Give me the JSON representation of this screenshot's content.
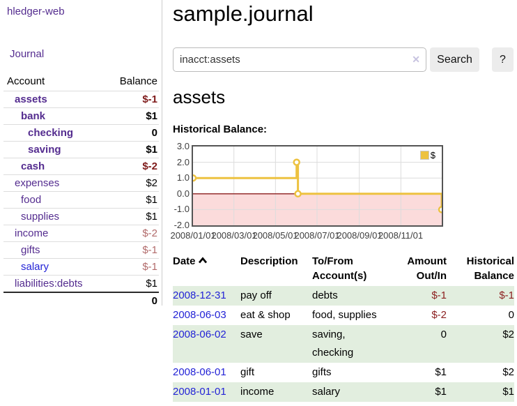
{
  "app": {
    "title": "hledger-web"
  },
  "sidebar": {
    "nav_journal": "Journal",
    "accounts": {
      "header_account": "Account",
      "header_balance": "Balance",
      "rows": [
        {
          "account": "assets",
          "indent": 1,
          "bold": true,
          "balance": "$-1",
          "negative": true
        },
        {
          "account": "bank",
          "indent": 2,
          "bold": true,
          "balance": "$1",
          "negative": false
        },
        {
          "account": "checking",
          "indent": 3,
          "bold": true,
          "balance": "0",
          "negative": false
        },
        {
          "account": "saving",
          "indent": 3,
          "bold": true,
          "balance": "$1",
          "negative": false
        },
        {
          "account": "cash",
          "indent": 2,
          "bold": true,
          "balance": "$-2",
          "negative": true
        },
        {
          "account": "expenses",
          "indent": 1,
          "bold": false,
          "balance": "$2",
          "negative": false
        },
        {
          "account": "food",
          "indent": 2,
          "bold": false,
          "balance": "$1",
          "negative": false
        },
        {
          "account": "supplies",
          "indent": 2,
          "bold": false,
          "balance": "$1",
          "negative": false
        },
        {
          "account": "income",
          "indent": 1,
          "bold": false,
          "balance": "$-2",
          "negative": true
        },
        {
          "account": "gifts",
          "indent": 2,
          "bold": false,
          "balance": "$-1",
          "negative": true
        },
        {
          "account": "salary",
          "indent": 2,
          "bold": false,
          "balance": "$-1",
          "negative": true,
          "unvisited": true
        },
        {
          "account": "liabilities:debts",
          "indent": 1,
          "bold": false,
          "balance": "$1",
          "negative": false
        }
      ],
      "total": "0"
    }
  },
  "main": {
    "title": "sample.journal",
    "search": {
      "value": "inacct:assets",
      "clear_icon": "✕",
      "button_label": "Search",
      "help_label": "?"
    },
    "account_heading": "assets",
    "chart_title": "Historical Balance:"
  },
  "chart_data": {
    "type": "line",
    "style": "step-after",
    "title": "Historical Balance",
    "xlabel": "",
    "ylabel": "",
    "ylim": [
      -2,
      3
    ],
    "x_range": [
      "2008-01-01",
      "2008-12-31"
    ],
    "y_ticks": [
      "3.0",
      "2.0",
      "1.0",
      "0.0",
      "-1.0",
      "-2.0"
    ],
    "x_ticks": [
      "2008/01/01",
      "2008/03/01",
      "2008/05/01",
      "2008/07/01",
      "2008/09/01",
      "2008/11/01"
    ],
    "grid": true,
    "legend_position": "top-right",
    "series": [
      {
        "name": "$",
        "color": "#edc240",
        "points": [
          {
            "date": "2008-01-01",
            "value": 1
          },
          {
            "date": "2008-06-01",
            "value": 2
          },
          {
            "date": "2008-06-03",
            "value": 0
          },
          {
            "date": "2008-12-31",
            "value": -1
          }
        ]
      }
    ],
    "colors": {
      "series": "#edc240",
      "marker_fill": "#ffffff",
      "negative_region": "#fbdbdb",
      "zero_line": "#8b1d1d",
      "gridline": "#dcdcdc",
      "border": "#545454"
    }
  },
  "register": {
    "headers": [
      "Date",
      "Description",
      "To/From Account(s)",
      "Amount Out/In",
      "Historical Balance"
    ],
    "sort_icon": "chevron-up",
    "rows": [
      {
        "date": "2008-12-31",
        "description": "pay off",
        "accounts": "debts",
        "amount": "$-1",
        "amount_negative": true,
        "balance": "$-1",
        "balance_negative": true
      },
      {
        "date": "2008-06-03",
        "description": "eat & shop",
        "accounts": "food, supplies",
        "amount": "$-2",
        "amount_negative": true,
        "balance": "0",
        "balance_negative": false
      },
      {
        "date": "2008-06-02",
        "description": "save",
        "accounts": "saving, checking",
        "amount": "0",
        "amount_negative": false,
        "balance": "$2",
        "balance_negative": false
      },
      {
        "date": "2008-06-01",
        "description": "gift",
        "accounts": "gifts",
        "amount": "$1",
        "amount_negative": false,
        "balance": "$2",
        "balance_negative": false
      },
      {
        "date": "2008-01-01",
        "description": "income",
        "accounts": "salary",
        "amount": "$1",
        "amount_negative": false,
        "balance": "$1",
        "balance_negative": false
      }
    ],
    "colors": {
      "date_link": "#2323d6",
      "negative_amount": "#8b1e1e",
      "row_stripe": "#e2eedf"
    }
  }
}
